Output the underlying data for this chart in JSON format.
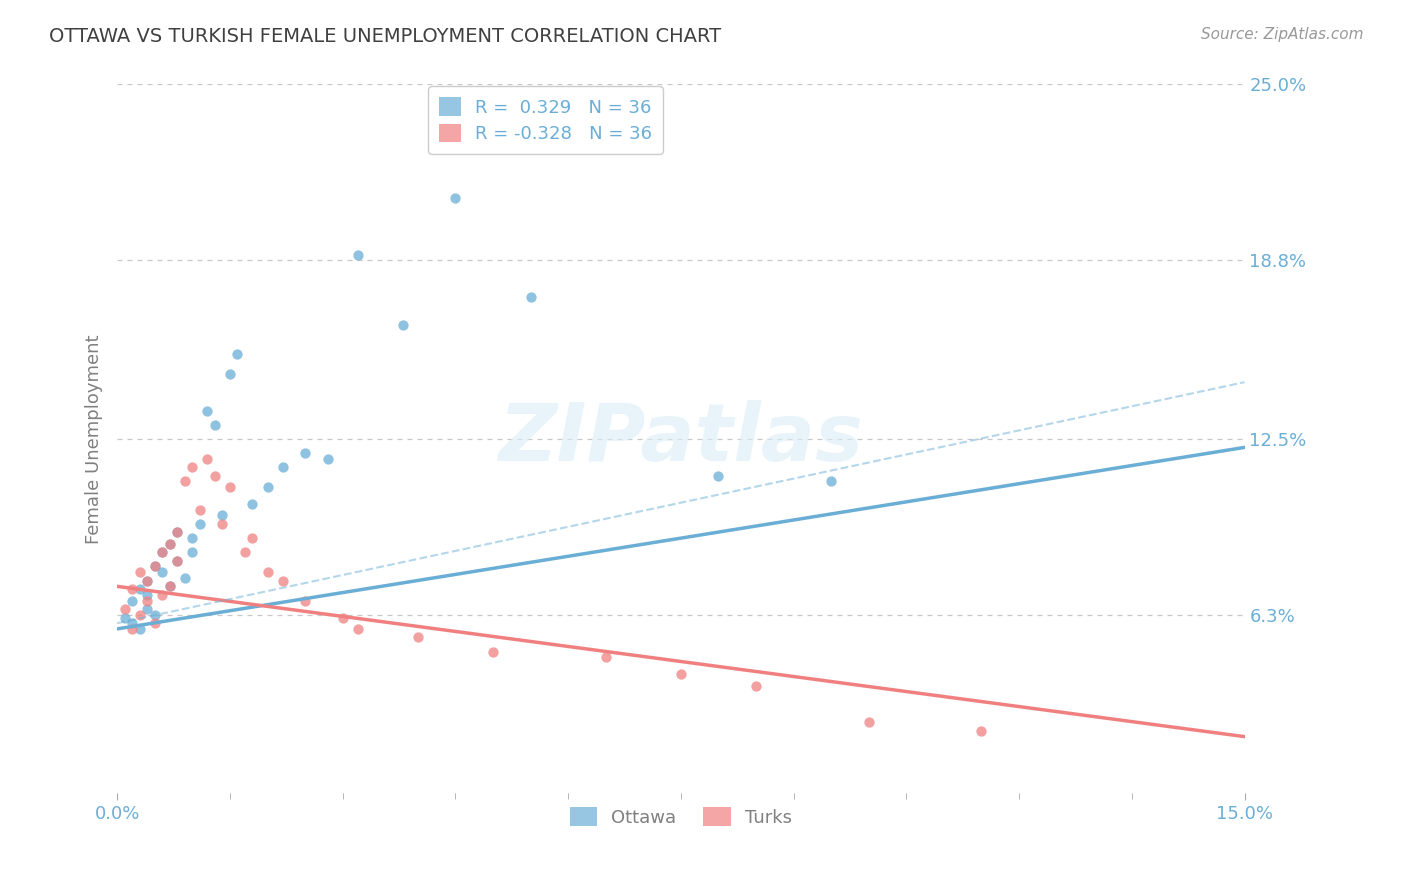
{
  "title": "OTTAWA VS TURKISH FEMALE UNEMPLOYMENT CORRELATION CHART",
  "source": "Source: ZipAtlas.com",
  "ylabel": "Female Unemployment",
  "xlim": [
    0.0,
    0.15
  ],
  "ylim": [
    -0.02,
    0.27
  ],
  "plot_ylim": [
    0.0,
    0.25
  ],
  "yticks": [
    0.063,
    0.125,
    0.188,
    0.25
  ],
  "ytick_labels": [
    "6.3%",
    "12.5%",
    "18.8%",
    "25.0%"
  ],
  "xtick_labels_pos": [
    0.0,
    0.15
  ],
  "xtick_labels": [
    "0.0%",
    "15.0%"
  ],
  "ottawa_color": "#6aaed6",
  "turks_color": "#f08080",
  "ottawa_R": 0.329,
  "turks_R": -0.328,
  "N": 36,
  "background_color": "#ffffff",
  "grid_color": "#c8c8c8",
  "title_color": "#404040",
  "axis_label_color": "#808080",
  "tick_color": "#6aaed6",
  "watermark_text": "ZIPatlas",
  "ottawa_trend_start_y": 0.058,
  "ottawa_trend_end_y": 0.122,
  "turks_trend_start_y": 0.073,
  "turks_trend_end_y": 0.02,
  "dashed_trend_start_y": 0.06,
  "dashed_trend_end_y": 0.145,
  "ottawa_scatter_x": [
    0.001,
    0.002,
    0.002,
    0.003,
    0.003,
    0.004,
    0.004,
    0.004,
    0.005,
    0.005,
    0.006,
    0.006,
    0.007,
    0.007,
    0.008,
    0.008,
    0.009,
    0.01,
    0.01,
    0.011,
    0.012,
    0.013,
    0.014,
    0.015,
    0.016,
    0.018,
    0.02,
    0.022,
    0.025,
    0.028,
    0.032,
    0.038,
    0.045,
    0.055,
    0.08,
    0.095
  ],
  "ottawa_scatter_y": [
    0.062,
    0.06,
    0.068,
    0.058,
    0.072,
    0.065,
    0.07,
    0.075,
    0.063,
    0.08,
    0.078,
    0.085,
    0.073,
    0.088,
    0.082,
    0.092,
    0.076,
    0.09,
    0.085,
    0.095,
    0.135,
    0.13,
    0.098,
    0.148,
    0.155,
    0.102,
    0.108,
    0.115,
    0.12,
    0.118,
    0.19,
    0.165,
    0.21,
    0.175,
    0.112,
    0.11
  ],
  "turks_scatter_x": [
    0.001,
    0.002,
    0.002,
    0.003,
    0.003,
    0.004,
    0.004,
    0.005,
    0.005,
    0.006,
    0.006,
    0.007,
    0.007,
    0.008,
    0.008,
    0.009,
    0.01,
    0.011,
    0.012,
    0.013,
    0.014,
    0.015,
    0.017,
    0.018,
    0.02,
    0.022,
    0.025,
    0.03,
    0.032,
    0.04,
    0.05,
    0.065,
    0.075,
    0.085,
    0.1,
    0.115
  ],
  "turks_scatter_y": [
    0.065,
    0.058,
    0.072,
    0.063,
    0.078,
    0.068,
    0.075,
    0.06,
    0.08,
    0.07,
    0.085,
    0.073,
    0.088,
    0.082,
    0.092,
    0.11,
    0.115,
    0.1,
    0.118,
    0.112,
    0.095,
    0.108,
    0.085,
    0.09,
    0.078,
    0.075,
    0.068,
    0.062,
    0.058,
    0.055,
    0.05,
    0.048,
    0.042,
    0.038,
    0.025,
    0.022
  ]
}
